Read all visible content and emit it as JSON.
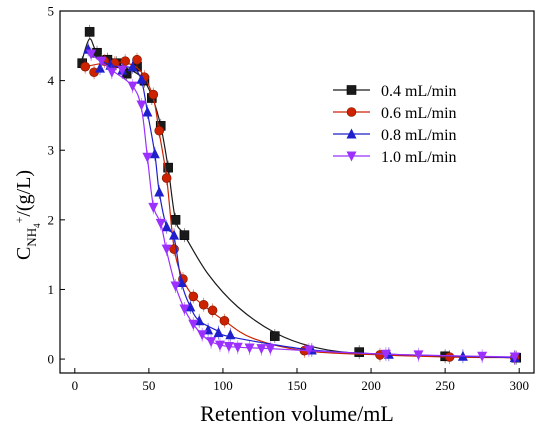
{
  "chart_data": {
    "type": "scatter",
    "xlabel": "Retention volume/mL",
    "ylabel": {
      "main": "C",
      "sub": "NH",
      "subsub": "4",
      "sup": "+",
      "rest": "/(g/L)"
    },
    "xlim": [
      -10,
      310
    ],
    "ylim": [
      -0.2,
      5
    ],
    "xticks": [
      0,
      50,
      100,
      150,
      200,
      250,
      300
    ],
    "yticks": [
      0,
      1,
      2,
      3,
      4,
      5
    ],
    "grid": false,
    "legend_position": "top-right",
    "series": [
      {
        "name": "0.4 mL/min",
        "color": "#1a1a1a",
        "marker": "square",
        "points": [
          [
            5,
            4.25
          ],
          [
            10,
            4.7
          ],
          [
            15,
            4.4
          ],
          [
            22,
            4.3
          ],
          [
            28,
            4.25
          ],
          [
            35,
            4.1
          ],
          [
            42,
            4.2
          ],
          [
            47,
            4.0
          ],
          [
            52,
            3.75
          ],
          [
            58,
            3.35
          ],
          [
            63,
            2.75
          ],
          [
            68,
            2.0
          ],
          [
            74,
            1.78
          ],
          [
            135,
            0.33
          ],
          [
            192,
            0.1
          ],
          [
            250,
            0.04
          ],
          [
            298,
            0.02
          ]
        ],
        "curve": [
          [
            5,
            4.3
          ],
          [
            10,
            4.6
          ],
          [
            15,
            4.4
          ],
          [
            25,
            4.28
          ],
          [
            35,
            4.18
          ],
          [
            45,
            4.05
          ],
          [
            52,
            3.78
          ],
          [
            58,
            3.35
          ],
          [
            63,
            2.75
          ],
          [
            68,
            2.0
          ],
          [
            74,
            1.78
          ],
          [
            90,
            1.22
          ],
          [
            110,
            0.75
          ],
          [
            135,
            0.38
          ],
          [
            160,
            0.18
          ],
          [
            192,
            0.08
          ],
          [
            250,
            0.04
          ],
          [
            298,
            0.02
          ]
        ]
      },
      {
        "name": "0.6 mL/min",
        "color": "#cc2200",
        "marker": "circle",
        "points": [
          [
            7,
            4.2
          ],
          [
            13,
            4.12
          ],
          [
            20,
            4.28
          ],
          [
            27,
            4.25
          ],
          [
            34,
            4.28
          ],
          [
            42,
            4.3
          ],
          [
            47,
            4.05
          ],
          [
            53,
            3.8
          ],
          [
            57,
            3.28
          ],
          [
            62,
            2.6
          ],
          [
            67,
            1.58
          ],
          [
            73,
            1.15
          ],
          [
            80,
            0.9
          ],
          [
            87,
            0.78
          ],
          [
            93,
            0.7
          ],
          [
            101,
            0.55
          ],
          [
            155,
            0.12
          ],
          [
            206,
            0.06
          ],
          [
            253,
            0.03
          ],
          [
            297,
            0.02
          ]
        ],
        "curve": [
          [
            7,
            4.2
          ],
          [
            20,
            4.25
          ],
          [
            35,
            4.25
          ],
          [
            45,
            4.12
          ],
          [
            53,
            3.75
          ],
          [
            57,
            3.25
          ],
          [
            62,
            2.6
          ],
          [
            67,
            1.6
          ],
          [
            73,
            1.15
          ],
          [
            80,
            0.9
          ],
          [
            90,
            0.72
          ],
          [
            101,
            0.55
          ],
          [
            120,
            0.3
          ],
          [
            155,
            0.12
          ],
          [
            206,
            0.06
          ],
          [
            253,
            0.03
          ],
          [
            297,
            0.02
          ]
        ]
      },
      {
        "name": "0.8 mL/min",
        "color": "#1f1fcc",
        "marker": "triangle-up",
        "points": [
          [
            9,
            4.45
          ],
          [
            17,
            4.18
          ],
          [
            24,
            4.22
          ],
          [
            32,
            4.15
          ],
          [
            39,
            4.2
          ],
          [
            45,
            4.02
          ],
          [
            49,
            3.55
          ],
          [
            54,
            2.95
          ],
          [
            57,
            2.4
          ],
          [
            62,
            1.9
          ],
          [
            67,
            1.78
          ],
          [
            72,
            1.1
          ],
          [
            78,
            0.75
          ],
          [
            84,
            0.55
          ],
          [
            90,
            0.42
          ],
          [
            97,
            0.38
          ],
          [
            105,
            0.35
          ],
          [
            160,
            0.13
          ],
          [
            212,
            0.07
          ],
          [
            262,
            0.04
          ],
          [
            297,
            0.02
          ]
        ],
        "curve": [
          [
            9,
            4.4
          ],
          [
            24,
            4.22
          ],
          [
            39,
            4.18
          ],
          [
            45,
            4.0
          ],
          [
            49,
            3.55
          ],
          [
            54,
            2.95
          ],
          [
            57,
            2.4
          ],
          [
            62,
            1.9
          ],
          [
            67,
            1.75
          ],
          [
            72,
            1.1
          ],
          [
            78,
            0.75
          ],
          [
            84,
            0.55
          ],
          [
            97,
            0.4
          ],
          [
            105,
            0.32
          ],
          [
            160,
            0.13
          ],
          [
            212,
            0.07
          ],
          [
            262,
            0.04
          ],
          [
            297,
            0.02
          ]
        ]
      },
      {
        "name": "1.0 mL/min",
        "color": "#9b30ff",
        "marker": "triangle-down",
        "points": [
          [
            11,
            4.38
          ],
          [
            18,
            4.28
          ],
          [
            25,
            4.12
          ],
          [
            32,
            4.15
          ],
          [
            39,
            3.92
          ],
          [
            45,
            3.65
          ],
          [
            49,
            2.9
          ],
          [
            53,
            2.18
          ],
          [
            58,
            1.95
          ],
          [
            62,
            1.58
          ],
          [
            68,
            1.05
          ],
          [
            74,
            0.72
          ],
          [
            80,
            0.5
          ],
          [
            86,
            0.35
          ],
          [
            92,
            0.25
          ],
          [
            98,
            0.2
          ],
          [
            104,
            0.18
          ],
          [
            110,
            0.17
          ],
          [
            118,
            0.16
          ],
          [
            126,
            0.15
          ],
          [
            132,
            0.15
          ],
          [
            158,
            0.13
          ],
          [
            210,
            0.07
          ],
          [
            232,
            0.06
          ],
          [
            275,
            0.04
          ],
          [
            297,
            0.03
          ]
        ],
        "curve": [
          [
            11,
            4.38
          ],
          [
            25,
            4.15
          ],
          [
            39,
            3.92
          ],
          [
            45,
            3.6
          ],
          [
            49,
            2.9
          ],
          [
            53,
            2.2
          ],
          [
            58,
            1.95
          ],
          [
            62,
            1.55
          ],
          [
            68,
            1.05
          ],
          [
            74,
            0.72
          ],
          [
            80,
            0.5
          ],
          [
            86,
            0.35
          ],
          [
            92,
            0.25
          ],
          [
            104,
            0.18
          ],
          [
            132,
            0.15
          ],
          [
            158,
            0.12
          ],
          [
            210,
            0.07
          ],
          [
            275,
            0.04
          ],
          [
            297,
            0.03
          ]
        ]
      }
    ]
  }
}
